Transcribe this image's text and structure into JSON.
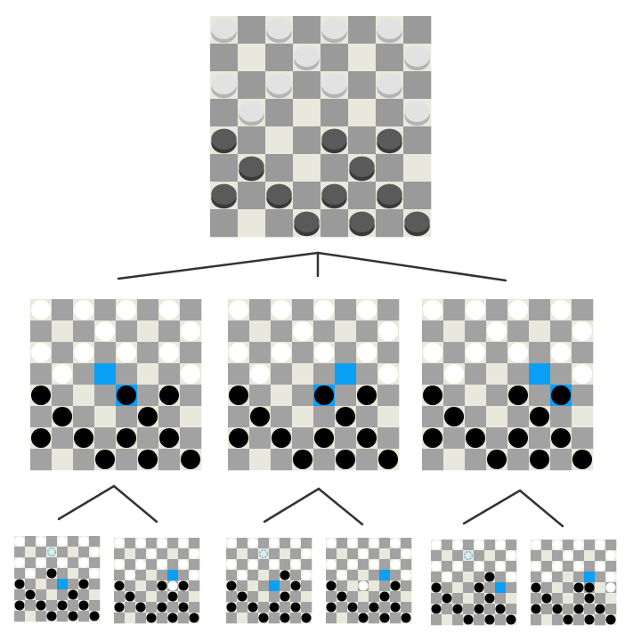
{
  "colors": {
    "light_square": "#e8e8dc",
    "dark_square": "#a2a2a2",
    "dark_square_3d": "#9a9a9a",
    "highlight": "#0aa0f5",
    "white_piece": "#ffffff",
    "white_piece_3d": "#e2e2e2",
    "white_piece_3d_rim": "#b4b4b4",
    "black_piece": "#000000",
    "black_piece_3d": "#5a5a5a",
    "black_piece_3d_rim": "#3a3a3a",
    "tree_line": "#333333"
  },
  "root": {
    "white": [
      [
        0,
        0
      ],
      [
        0,
        2
      ],
      [
        0,
        4
      ],
      [
        0,
        6
      ],
      [
        1,
        3
      ],
      [
        1,
        7
      ],
      [
        2,
        0
      ],
      [
        2,
        2
      ],
      [
        2,
        4
      ],
      [
        2,
        6
      ],
      [
        3,
        1
      ],
      [
        3,
        7
      ]
    ],
    "black": [
      [
        4,
        0
      ],
      [
        4,
        4
      ],
      [
        4,
        6
      ],
      [
        5,
        1
      ],
      [
        5,
        5
      ],
      [
        6,
        0
      ],
      [
        6,
        2
      ],
      [
        6,
        4
      ],
      [
        6,
        6
      ],
      [
        7,
        3
      ],
      [
        7,
        5
      ],
      [
        7,
        7
      ]
    ],
    "highlights": []
  },
  "level1": [
    {
      "white": [
        [
          0,
          0
        ],
        [
          0,
          2
        ],
        [
          0,
          4
        ],
        [
          0,
          6
        ],
        [
          1,
          3
        ],
        [
          1,
          7
        ],
        [
          2,
          0
        ],
        [
          2,
          2
        ],
        [
          2,
          4
        ],
        [
          2,
          6
        ],
        [
          3,
          1
        ],
        [
          3,
          7
        ]
      ],
      "black": [
        [
          4,
          0
        ],
        [
          4,
          4
        ],
        [
          4,
          6
        ],
        [
          5,
          1
        ],
        [
          5,
          5
        ],
        [
          6,
          0
        ],
        [
          6,
          2
        ],
        [
          6,
          4
        ],
        [
          6,
          6
        ],
        [
          7,
          3
        ],
        [
          7,
          5
        ],
        [
          7,
          7
        ]
      ],
      "highlights": [
        [
          3,
          3
        ],
        [
          4,
          4
        ]
      ]
    },
    {
      "white": [
        [
          0,
          0
        ],
        [
          0,
          2
        ],
        [
          0,
          4
        ],
        [
          0,
          6
        ],
        [
          1,
          3
        ],
        [
          1,
          7
        ],
        [
          2,
          0
        ],
        [
          2,
          2
        ],
        [
          2,
          4
        ],
        [
          2,
          6
        ],
        [
          3,
          1
        ],
        [
          3,
          7
        ]
      ],
      "black": [
        [
          4,
          0
        ],
        [
          4,
          4
        ],
        [
          4,
          6
        ],
        [
          5,
          1
        ],
        [
          5,
          5
        ],
        [
          6,
          0
        ],
        [
          6,
          2
        ],
        [
          6,
          4
        ],
        [
          6,
          6
        ],
        [
          7,
          3
        ],
        [
          7,
          5
        ],
        [
          7,
          7
        ]
      ],
      "highlights": [
        [
          3,
          5
        ],
        [
          4,
          4
        ]
      ]
    },
    {
      "white": [
        [
          0,
          0
        ],
        [
          0,
          2
        ],
        [
          0,
          4
        ],
        [
          0,
          6
        ],
        [
          1,
          3
        ],
        [
          1,
          7
        ],
        [
          2,
          0
        ],
        [
          2,
          2
        ],
        [
          2,
          4
        ],
        [
          2,
          6
        ],
        [
          3,
          1
        ],
        [
          3,
          7
        ]
      ],
      "black": [
        [
          4,
          0
        ],
        [
          4,
          4
        ],
        [
          4,
          6
        ],
        [
          5,
          1
        ],
        [
          5,
          5
        ],
        [
          6,
          0
        ],
        [
          6,
          2
        ],
        [
          6,
          4
        ],
        [
          6,
          6
        ],
        [
          7,
          3
        ],
        [
          7,
          5
        ],
        [
          7,
          7
        ]
      ],
      "highlights": [
        [
          3,
          5
        ],
        [
          4,
          6
        ]
      ]
    }
  ],
  "level2": [
    {
      "white": [
        [
          0,
          0
        ],
        [
          0,
          2
        ],
        [
          0,
          4
        ],
        [
          0,
          6
        ],
        [
          1,
          7
        ],
        [
          2,
          0
        ],
        [
          2,
          2
        ],
        [
          2,
          4
        ],
        [
          2,
          6
        ],
        [
          3,
          1
        ],
        [
          3,
          7
        ]
      ],
      "white_outline": [
        [
          1,
          3
        ]
      ],
      "black": [
        [
          4,
          0
        ],
        [
          4,
          6
        ],
        [
          5,
          1
        ],
        [
          5,
          5
        ],
        [
          6,
          0
        ],
        [
          6,
          2
        ],
        [
          6,
          4
        ],
        [
          6,
          6
        ],
        [
          7,
          3
        ],
        [
          7,
          5
        ],
        [
          7,
          7
        ],
        [
          3,
          3
        ]
      ],
      "highlights": [
        [
          4,
          4
        ]
      ]
    },
    {
      "white": [
        [
          0,
          0
        ],
        [
          0,
          2
        ],
        [
          0,
          4
        ],
        [
          0,
          6
        ],
        [
          1,
          3
        ],
        [
          1,
          7
        ],
        [
          2,
          0
        ],
        [
          2,
          2
        ],
        [
          2,
          4
        ],
        [
          2,
          6
        ],
        [
          3,
          1
        ],
        [
          3,
          7
        ],
        [
          4,
          5
        ]
      ],
      "black": [
        [
          4,
          0
        ],
        [
          4,
          6
        ],
        [
          5,
          1
        ],
        [
          5,
          5
        ],
        [
          6,
          0
        ],
        [
          6,
          2
        ],
        [
          6,
          4
        ],
        [
          6,
          6
        ],
        [
          7,
          3
        ],
        [
          7,
          5
        ],
        [
          7,
          7
        ],
        [
          4,
          4
        ]
      ],
      "highlights": [
        [
          3,
          5
        ]
      ]
    },
    {
      "white": [
        [
          0,
          0
        ],
        [
          0,
          2
        ],
        [
          0,
          4
        ],
        [
          0,
          6
        ],
        [
          1,
          7
        ],
        [
          2,
          0
        ],
        [
          2,
          2
        ],
        [
          2,
          4
        ],
        [
          2,
          6
        ],
        [
          3,
          1
        ],
        [
          3,
          7
        ]
      ],
      "white_outline": [
        [
          1,
          3
        ]
      ],
      "black": [
        [
          4,
          0
        ],
        [
          4,
          6
        ],
        [
          5,
          1
        ],
        [
          5,
          5
        ],
        [
          6,
          0
        ],
        [
          6,
          2
        ],
        [
          6,
          4
        ],
        [
          6,
          6
        ],
        [
          7,
          3
        ],
        [
          7,
          5
        ],
        [
          7,
          7
        ],
        [
          3,
          5
        ]
      ],
      "highlights": [
        [
          4,
          4
        ]
      ]
    },
    {
      "white": [
        [
          0,
          0
        ],
        [
          0,
          2
        ],
        [
          0,
          4
        ],
        [
          0,
          6
        ],
        [
          1,
          3
        ],
        [
          1,
          7
        ],
        [
          2,
          0
        ],
        [
          2,
          2
        ],
        [
          2,
          4
        ],
        [
          2,
          6
        ],
        [
          3,
          1
        ],
        [
          3,
          7
        ],
        [
          4,
          3
        ]
      ],
      "black": [
        [
          4,
          0
        ],
        [
          4,
          6
        ],
        [
          5,
          1
        ],
        [
          5,
          5
        ],
        [
          6,
          0
        ],
        [
          6,
          2
        ],
        [
          6,
          4
        ],
        [
          6,
          6
        ],
        [
          7,
          3
        ],
        [
          7,
          5
        ],
        [
          7,
          7
        ]
      ],
      "highlights": [
        [
          3,
          5
        ]
      ]
    },
    {
      "white": [
        [
          0,
          0
        ],
        [
          0,
          2
        ],
        [
          0,
          4
        ],
        [
          0,
          6
        ],
        [
          1,
          7
        ],
        [
          2,
          0
        ],
        [
          2,
          2
        ],
        [
          2,
          4
        ],
        [
          2,
          6
        ],
        [
          3,
          1
        ],
        [
          3,
          7
        ]
      ],
      "white_outline": [
        [
          1,
          3
        ]
      ],
      "black": [
        [
          4,
          0
        ],
        [
          4,
          4
        ],
        [
          5,
          1
        ],
        [
          5,
          5
        ],
        [
          6,
          0
        ],
        [
          6,
          2
        ],
        [
          6,
          4
        ],
        [
          6,
          6
        ],
        [
          7,
          3
        ],
        [
          7,
          5
        ],
        [
          7,
          7
        ],
        [
          3,
          5
        ]
      ],
      "highlights": [
        [
          4,
          6
        ]
      ]
    },
    {
      "white": [
        [
          0,
          0
        ],
        [
          0,
          2
        ],
        [
          0,
          4
        ],
        [
          0,
          6
        ],
        [
          1,
          3
        ],
        [
          1,
          7
        ],
        [
          2,
          0
        ],
        [
          2,
          2
        ],
        [
          2,
          4
        ],
        [
          2,
          6
        ],
        [
          3,
          1
        ],
        [
          3,
          7
        ],
        [
          4,
          7
        ]
      ],
      "black": [
        [
          4,
          0
        ],
        [
          4,
          4
        ],
        [
          5,
          1
        ],
        [
          5,
          5
        ],
        [
          6,
          0
        ],
        [
          6,
          2
        ],
        [
          6,
          4
        ],
        [
          6,
          6
        ],
        [
          7,
          3
        ],
        [
          7,
          5
        ],
        [
          7,
          7
        ],
        [
          4,
          5
        ]
      ],
      "highlights": [
        [
          3,
          5
        ]
      ]
    }
  ]
}
